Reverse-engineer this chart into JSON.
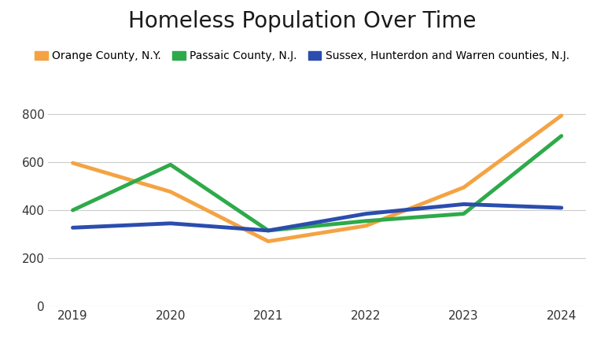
{
  "title": "Homeless Population Over Time",
  "years": [
    2019,
    2020,
    2021,
    2022,
    2023,
    2024
  ],
  "series": [
    {
      "label": "Orange County, N.Y.",
      "color": "#F4A343",
      "values": [
        597,
        477,
        270,
        335,
        495,
        795
      ]
    },
    {
      "label": "Passaic County, N.J.",
      "color": "#2EAA4A",
      "values": [
        400,
        590,
        315,
        355,
        385,
        710
      ]
    },
    {
      "label": "Sussex, Hunterdon and Warren counties, N.J.",
      "color": "#2B4DAE",
      "values": [
        327,
        345,
        315,
        385,
        425,
        410
      ]
    }
  ],
  "ylim": [
    0,
    880
  ],
  "yticks": [
    0,
    200,
    400,
    600,
    800
  ],
  "background_color": "#FFFFFF",
  "grid_color": "#CCCCCC",
  "title_fontsize": 20,
  "legend_fontsize": 10,
  "tick_fontsize": 11,
  "linewidth": 3.5
}
